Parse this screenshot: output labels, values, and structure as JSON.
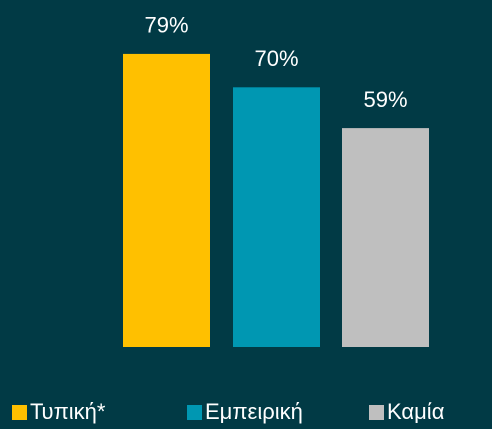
{
  "chart_data": {
    "type": "bar",
    "categories": [
      "Τυπική*",
      "Εμπειρική",
      "Καμία"
    ],
    "values": [
      79,
      70,
      59
    ],
    "value_labels": [
      "79%",
      "70%",
      "59%"
    ],
    "colors": [
      "#ffc000",
      "#0097b2",
      "#bfbfbf"
    ]
  }
}
